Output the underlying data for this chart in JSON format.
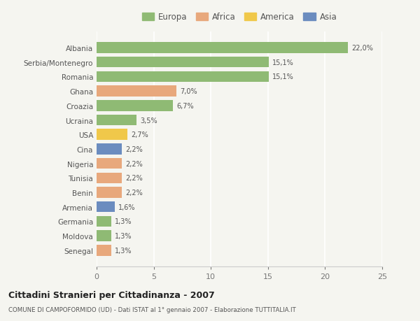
{
  "categories": [
    "Albania",
    "Serbia/Montenegro",
    "Romania",
    "Ghana",
    "Croazia",
    "Ucraina",
    "USA",
    "Cina",
    "Nigeria",
    "Tunisia",
    "Benin",
    "Armenia",
    "Germania",
    "Moldova",
    "Senegal"
  ],
  "values": [
    22.0,
    15.1,
    15.1,
    7.0,
    6.7,
    3.5,
    2.7,
    2.2,
    2.2,
    2.2,
    2.2,
    1.6,
    1.3,
    1.3,
    1.3
  ],
  "labels": [
    "22,0%",
    "15,1%",
    "15,1%",
    "7,0%",
    "6,7%",
    "3,5%",
    "2,7%",
    "2,2%",
    "2,2%",
    "2,2%",
    "2,2%",
    "1,6%",
    "1,3%",
    "1,3%",
    "1,3%"
  ],
  "colors": [
    "#8fba74",
    "#8fba74",
    "#8fba74",
    "#e8a87c",
    "#8fba74",
    "#8fba74",
    "#f0c84a",
    "#6b8cbf",
    "#e8a87c",
    "#e8a87c",
    "#e8a87c",
    "#6b8cbf",
    "#8fba74",
    "#8fba74",
    "#e8a87c"
  ],
  "legend_labels": [
    "Europa",
    "Africa",
    "America",
    "Asia"
  ],
  "legend_colors": [
    "#8fba74",
    "#e8a87c",
    "#f0c84a",
    "#6b8cbf"
  ],
  "xlim": [
    0,
    25
  ],
  "xticks": [
    0,
    5,
    10,
    15,
    20,
    25
  ],
  "title": "Cittadini Stranieri per Cittadinanza - 2007",
  "subtitle": "COMUNE DI CAMPOFORMIDO (UD) - Dati ISTAT al 1° gennaio 2007 - Elaborazione TUTTITALIA.IT",
  "background_color": "#f5f5f0",
  "bar_height": 0.75
}
